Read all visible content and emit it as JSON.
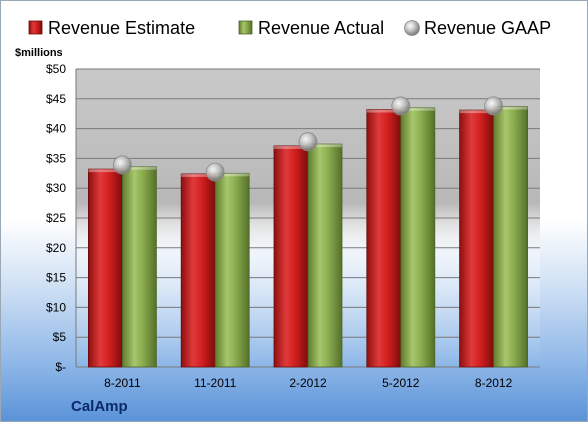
{
  "chart_data": {
    "type": "bar",
    "unit_label": "$millions",
    "company": "CalAmp",
    "categories": [
      "8-2011",
      "11-2011",
      "2-2012",
      "5-2012",
      "8-2012"
    ],
    "series": [
      {
        "name": "Revenue Estimate",
        "kind": "bar",
        "color": "#d42020",
        "values": [
          33.2,
          32.4,
          37.1,
          43.2,
          43.1
        ]
      },
      {
        "name": "Revenue Actual",
        "kind": "bar",
        "color": "#8aac4e",
        "values": [
          33.6,
          32.5,
          37.4,
          43.5,
          43.7
        ]
      },
      {
        "name": "Revenue GAAP",
        "kind": "marker",
        "color": "#b8b8b8",
        "values": [
          33.9,
          32.7,
          37.8,
          43.8,
          43.8
        ]
      }
    ],
    "ylim": [
      0,
      50
    ],
    "yticks": [
      0,
      5,
      10,
      15,
      20,
      25,
      30,
      35,
      40,
      45,
      50
    ],
    "ytick_labels": [
      "$-",
      "$5",
      "$10",
      "$15",
      "$20",
      "$25",
      "$30",
      "$35",
      "$40",
      "$45",
      "$50"
    ],
    "grid": true,
    "legend_position": "top"
  }
}
